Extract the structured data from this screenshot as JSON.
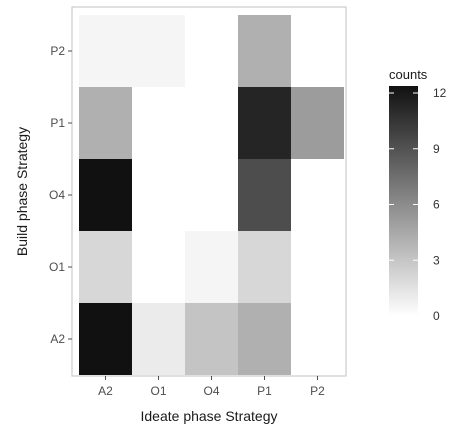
{
  "chart_data": {
    "type": "heatmap",
    "xlabel": "Ideate phase Strategy",
    "ylabel": "Build phase Strategy",
    "x_categories": [
      "A2",
      "O1",
      "O4",
      "P1",
      "P2"
    ],
    "y_categories": [
      "A2",
      "O1",
      "O4",
      "P1",
      "P2"
    ],
    "cells": [
      {
        "x": "A2",
        "y": "A2",
        "value": 12
      },
      {
        "x": "O1",
        "y": "A2",
        "value": 1
      },
      {
        "x": "O4",
        "y": "A2",
        "value": 3
      },
      {
        "x": "P1",
        "y": "A2",
        "value": 4
      },
      {
        "x": "A2",
        "y": "O1",
        "value": 2
      },
      {
        "x": "O4",
        "y": "O1",
        "value": 0.5
      },
      {
        "x": "P1",
        "y": "O1",
        "value": 2
      },
      {
        "x": "A2",
        "y": "O4",
        "value": 12
      },
      {
        "x": "P1",
        "y": "O4",
        "value": 9
      },
      {
        "x": "A2",
        "y": "P1",
        "value": 4
      },
      {
        "x": "P1",
        "y": "P1",
        "value": 11
      },
      {
        "x": "P2",
        "y": "P1",
        "value": 5
      },
      {
        "x": "A2",
        "y": "P2",
        "value": 0.5
      },
      {
        "x": "O1",
        "y": "P2",
        "value": 0.5
      },
      {
        "x": "P1",
        "y": "P2",
        "value": 4
      }
    ],
    "legend": {
      "title": "counts",
      "ticks": [
        0,
        3,
        6,
        9,
        12
      ],
      "range": [
        0,
        12
      ],
      "low_color": "#ffffff",
      "high_color": "#111111",
      "placement": "right"
    },
    "colors": {
      "panel_border": "#cccccc",
      "tick_color": "#4d4d4d"
    }
  }
}
